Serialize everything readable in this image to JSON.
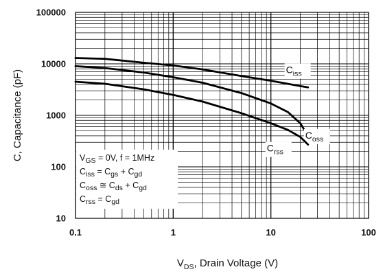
{
  "chart_data": {
    "type": "line",
    "x_scale": "log",
    "y_scale": "log",
    "xlim": [
      0.1,
      100
    ],
    "ylim": [
      10,
      100000
    ],
    "grid": true,
    "x_ticks": [
      "0.1",
      "1",
      "10",
      "100"
    ],
    "y_ticks": [
      "10",
      "100",
      "1000",
      "10000",
      "100000"
    ],
    "xlabel": {
      "main": "V",
      "sub": "DS",
      "rest": ", Drain Voltage (V)"
    },
    "ylabel": "C, Capacitance (pF)",
    "series": [
      {
        "name": "Ciss",
        "label_main": "C",
        "label_sub": "iss",
        "x": [
          0.1,
          0.2,
          0.5,
          1,
          2,
          5,
          10,
          20,
          24
        ],
        "y": [
          13000,
          12500,
          10500,
          9300,
          7800,
          5800,
          4700,
          3700,
          3500
        ]
      },
      {
        "name": "Coss",
        "label_main": "C",
        "label_sub": "oss",
        "x": [
          0.1,
          0.2,
          0.5,
          1,
          2,
          5,
          10,
          15,
          20,
          24
        ],
        "y": [
          9000,
          8300,
          6800,
          5500,
          4300,
          2700,
          1700,
          1150,
          700,
          400
        ]
      },
      {
        "name": "Crss",
        "label_main": "C",
        "label_sub": "rss",
        "x": [
          0.1,
          0.2,
          0.5,
          1,
          2,
          5,
          10,
          15,
          20,
          24
        ],
        "y": [
          4500,
          4100,
          3200,
          2500,
          1850,
          1100,
          700,
          520,
          380,
          270
        ]
      }
    ],
    "annotations": [
      {
        "parts": [
          [
            "V",
            ""
          ],
          [
            "GS",
            "sub"
          ],
          [
            " = 0V, f = 1MHz",
            ""
          ]
        ]
      },
      {
        "parts": [
          [
            "C",
            ""
          ],
          [
            "iss",
            "sub"
          ],
          [
            " = C",
            ""
          ],
          [
            "gs",
            "sub"
          ],
          [
            " + C",
            ""
          ],
          [
            "gd",
            "sub"
          ]
        ]
      },
      {
        "parts": [
          [
            "C",
            ""
          ],
          [
            "oss",
            "sub"
          ],
          [
            " ≅ C",
            ""
          ],
          [
            "ds",
            "sub"
          ],
          [
            " + C",
            ""
          ],
          [
            "gd",
            "sub"
          ]
        ]
      },
      {
        "parts": [
          [
            "C",
            ""
          ],
          [
            "rss",
            "sub"
          ],
          [
            " = C",
            ""
          ],
          [
            "gd",
            "sub"
          ]
        ]
      }
    ]
  }
}
